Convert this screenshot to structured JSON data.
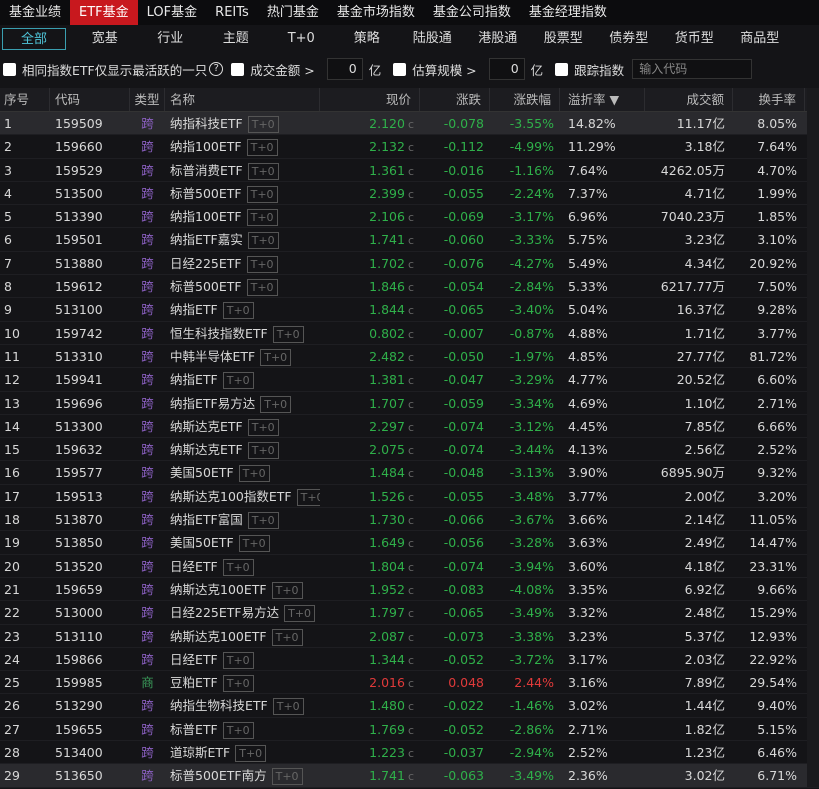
{
  "top_tabs": [
    "基金业绩",
    "ETF基金",
    "LOF基金",
    "REITs",
    "热门基金",
    "基金市场指数",
    "基金公司指数",
    "基金经理指数"
  ],
  "top_active": 1,
  "sub_tabs": [
    "全部",
    "宽基",
    "行业",
    "主题",
    "T+0",
    "策略",
    "陆股通",
    "港股通",
    "股票型",
    "债券型",
    "货币型",
    "商品型"
  ],
  "sub_active": 0,
  "filters": {
    "same_index": "相同指数ETF仅显示最活跃的一只",
    "help": "?",
    "turnover": "成交金额 >",
    "turnover_value": "0",
    "turnover_unit": "亿",
    "scale": "估算规模 >",
    "scale_value": "0",
    "scale_unit": "亿",
    "track": "跟踪指数",
    "code_placeholder": "输入代码"
  },
  "columns": [
    "序号",
    "代码",
    "类型",
    "名称",
    "现价",
    "涨跌",
    "涨跌幅",
    "溢折率 ▼",
    "成交额",
    "换手率"
  ],
  "tag": "T+0",
  "price_suffix": "c",
  "colors": {
    "up": "#e03a3a",
    "down": "#2fb04a",
    "active_tab": "#c8181e",
    "cross": "#8a5fc0"
  },
  "rows": [
    [
      "1",
      "159509",
      "跨",
      "纳指科技ETF",
      "2.120",
      "-0.078",
      "-3.55%",
      "14.82%",
      "11.17亿",
      "8.05%"
    ],
    [
      "2",
      "159660",
      "跨",
      "纳指100ETF",
      "2.132",
      "-0.112",
      "-4.99%",
      "11.29%",
      "3.18亿",
      "7.64%"
    ],
    [
      "3",
      "159529",
      "跨",
      "标普消费ETF",
      "1.361",
      "-0.016",
      "-1.16%",
      "7.64%",
      "4262.05万",
      "4.70%"
    ],
    [
      "4",
      "513500",
      "跨",
      "标普500ETF",
      "2.399",
      "-0.055",
      "-2.24%",
      "7.37%",
      "4.71亿",
      "1.99%"
    ],
    [
      "5",
      "513390",
      "跨",
      "纳指100ETF",
      "2.106",
      "-0.069",
      "-3.17%",
      "6.96%",
      "7040.23万",
      "1.85%"
    ],
    [
      "6",
      "159501",
      "跨",
      "纳指ETF嘉实",
      "1.741",
      "-0.060",
      "-3.33%",
      "5.75%",
      "3.23亿",
      "3.10%"
    ],
    [
      "7",
      "513880",
      "跨",
      "日经225ETF",
      "1.702",
      "-0.076",
      "-4.27%",
      "5.49%",
      "4.34亿",
      "20.92%"
    ],
    [
      "8",
      "159612",
      "跨",
      "标普500ETF",
      "1.846",
      "-0.054",
      "-2.84%",
      "5.33%",
      "6217.77万",
      "7.50%"
    ],
    [
      "9",
      "513100",
      "跨",
      "纳指ETF",
      "1.844",
      "-0.065",
      "-3.40%",
      "5.04%",
      "16.37亿",
      "9.28%"
    ],
    [
      "10",
      "159742",
      "跨",
      "恒生科技指数ETF",
      "0.802",
      "-0.007",
      "-0.87%",
      "4.88%",
      "1.71亿",
      "3.77%"
    ],
    [
      "11",
      "513310",
      "跨",
      "中韩半导体ETF",
      "2.482",
      "-0.050",
      "-1.97%",
      "4.85%",
      "27.77亿",
      "81.72%"
    ],
    [
      "12",
      "159941",
      "跨",
      "纳指ETF",
      "1.381",
      "-0.047",
      "-3.29%",
      "4.77%",
      "20.52亿",
      "6.60%"
    ],
    [
      "13",
      "159696",
      "跨",
      "纳指ETF易方达",
      "1.707",
      "-0.059",
      "-3.34%",
      "4.69%",
      "1.10亿",
      "2.71%"
    ],
    [
      "14",
      "513300",
      "跨",
      "纳斯达克ETF",
      "2.297",
      "-0.074",
      "-3.12%",
      "4.45%",
      "7.85亿",
      "6.66%"
    ],
    [
      "15",
      "159632",
      "跨",
      "纳斯达克ETF",
      "2.075",
      "-0.074",
      "-3.44%",
      "4.13%",
      "2.56亿",
      "2.52%"
    ],
    [
      "16",
      "159577",
      "跨",
      "美国50ETF",
      "1.484",
      "-0.048",
      "-3.13%",
      "3.90%",
      "6895.90万",
      "9.32%"
    ],
    [
      "17",
      "159513",
      "跨",
      "纳斯达克100指数ETF",
      "1.526",
      "-0.055",
      "-3.48%",
      "3.77%",
      "2.00亿",
      "3.20%"
    ],
    [
      "18",
      "513870",
      "跨",
      "纳指ETF富国",
      "1.730",
      "-0.066",
      "-3.67%",
      "3.66%",
      "2.14亿",
      "11.05%"
    ],
    [
      "19",
      "513850",
      "跨",
      "美国50ETF",
      "1.649",
      "-0.056",
      "-3.28%",
      "3.63%",
      "2.49亿",
      "14.47%"
    ],
    [
      "20",
      "513520",
      "跨",
      "日经ETF",
      "1.804",
      "-0.074",
      "-3.94%",
      "3.60%",
      "4.18亿",
      "23.31%"
    ],
    [
      "21",
      "159659",
      "跨",
      "纳斯达克100ETF",
      "1.952",
      "-0.083",
      "-4.08%",
      "3.35%",
      "6.92亿",
      "9.66%"
    ],
    [
      "22",
      "513000",
      "跨",
      "日经225ETF易方达",
      "1.797",
      "-0.065",
      "-3.49%",
      "3.32%",
      "2.48亿",
      "15.29%"
    ],
    [
      "23",
      "513110",
      "跨",
      "纳斯达克100ETF",
      "2.087",
      "-0.073",
      "-3.38%",
      "3.23%",
      "5.37亿",
      "12.93%"
    ],
    [
      "24",
      "159866",
      "跨",
      "日经ETF",
      "1.344",
      "-0.052",
      "-3.72%",
      "3.17%",
      "2.03亿",
      "22.92%"
    ],
    [
      "25",
      "159985",
      "商",
      "豆粕ETF",
      "2.016",
      "0.048",
      "2.44%",
      "3.16%",
      "7.89亿",
      "29.54%"
    ],
    [
      "26",
      "513290",
      "跨",
      "纳指生物科技ETF",
      "1.480",
      "-0.022",
      "-1.46%",
      "3.02%",
      "1.44亿",
      "9.40%"
    ],
    [
      "27",
      "159655",
      "跨",
      "标普ETF",
      "1.769",
      "-0.052",
      "-2.86%",
      "2.71%",
      "1.82亿",
      "5.15%"
    ],
    [
      "28",
      "513400",
      "跨",
      "道琼斯ETF",
      "1.223",
      "-0.037",
      "-2.94%",
      "2.52%",
      "1.23亿",
      "6.46%"
    ],
    [
      "29",
      "513650",
      "跨",
      "标普500ETF南方",
      "1.741",
      "-0.063",
      "-3.49%",
      "2.36%",
      "3.02亿",
      "6.71%"
    ]
  ],
  "selected_rows": [
    0,
    28
  ]
}
